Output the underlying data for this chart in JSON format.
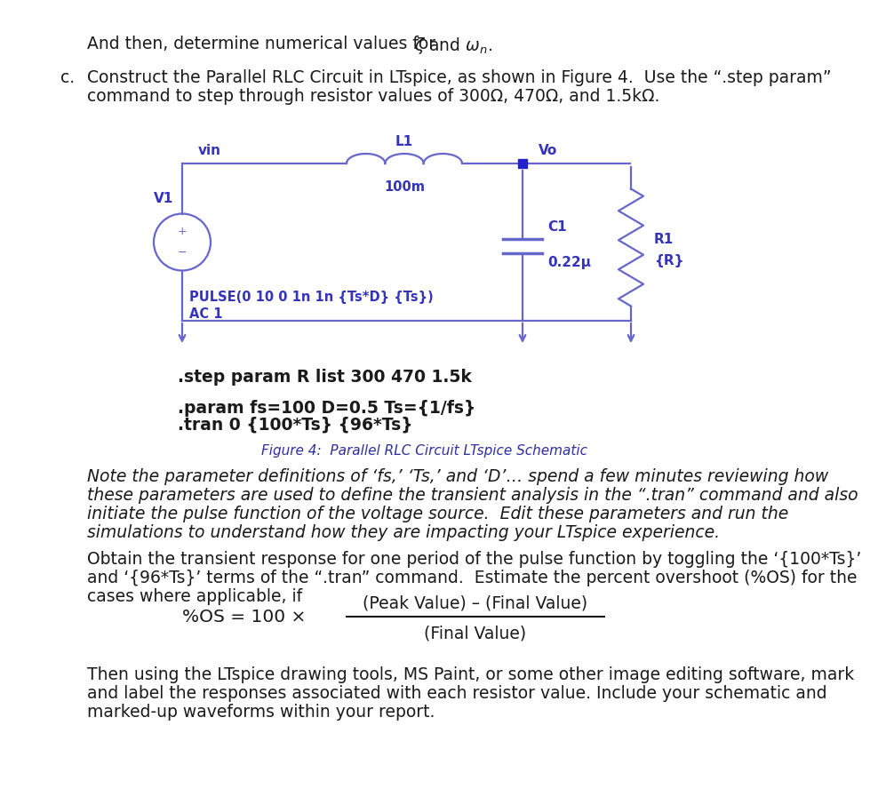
{
  "bg_color": "#ffffff",
  "text_color": "#2e2e9e",
  "black_color": "#1a1a1a",
  "circuit_blue": "#3333bb",
  "circuit_line": "#6666cc",
  "item_c_text1": "Construct the Parallel RLC Circuit in LTspice, as shown in Figure 4.  Use the “.step param”",
  "item_c_text2": "command to step through resistor values of 300Ω, 470Ω, and 1.5kΩ.",
  "circuit_label_L1": "L1",
  "circuit_label_vin": "vin",
  "circuit_label_Vo": "Vo",
  "circuit_label_100m": "100m",
  "circuit_label_V1": "V1",
  "circuit_label_C1": "C1",
  "circuit_label_022u": "0.22μ",
  "circuit_label_R1": "R1",
  "circuit_label_R": "{R}",
  "circuit_label_pulse": "PULSE(0 10 0 1n 1n {Ts*D} {Ts})",
  "circuit_label_ac": "AC 1",
  "spice_line1": ".step param R list 300 470 1.5k",
  "spice_line2": ".param fs=100 D=0.5 Ts={1/fs}",
  "spice_line3": ".tran 0 {100*Ts} {96*Ts}",
  "figure_caption": "Figure 4:  Parallel RLC Circuit LTspice Schematic",
  "italic_line1": "Note the parameter definitions of ‘fs,’ ‘Ts,’ and ‘D’… spend a few minutes reviewing how",
  "italic_line2": "these parameters are used to define the transient analysis in the “.tran” command and also",
  "italic_line3": "initiate the pulse function of the voltage source.  Edit these parameters and run the",
  "italic_line4": "simulations to understand how they are impacting your LTspice experience.",
  "para2_line1": "Obtain the transient response for one period of the pulse function by toggling the ‘{100*Ts}’",
  "para2_line2": "and ‘{96*Ts}’ terms of the “.tran” command.  Estimate the percent overshoot (%OS) for the",
  "para2_line3": "cases where applicable, if",
  "formula_left": "%OS = 100 ×",
  "formula_num": "(Peak Value) – (Final Value)",
  "formula_den": "(Final Value)",
  "para3_line1": "Then using the LTspice drawing tools, MS Paint, or some other image editing software, mark",
  "para3_line2": "and label the responses associated with each resistor value. Include your schematic and",
  "para3_line3": "marked-up waveforms within your report."
}
